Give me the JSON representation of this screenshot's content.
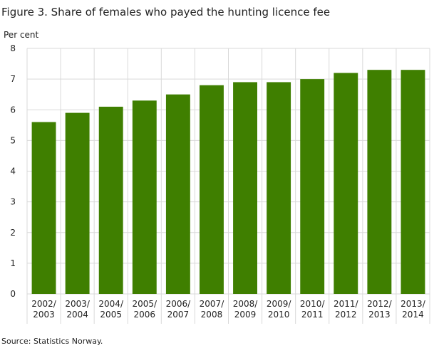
{
  "chart_data": {
    "type": "bar",
    "title": "Figure 3. Share of females who payed the hunting licence fee",
    "y_label": "Per cent",
    "source": "Source: Statistics Norway.",
    "categories": [
      "2002/2003",
      "2003/2004",
      "2004/2005",
      "2005/2006",
      "2006/2007",
      "2007/2008",
      "2008/2009",
      "2009/2010",
      "2010/2011",
      "2011/2012",
      "2012/2013",
      "2013/2014"
    ],
    "values": [
      5.6,
      5.9,
      6.1,
      6.3,
      6.5,
      6.8,
      6.9,
      6.9,
      7.0,
      7.2,
      7.3,
      7.3
    ],
    "color": "#3f7f00",
    "ylim": [
      0,
      8
    ],
    "yticks": [
      0,
      1,
      2,
      3,
      4,
      5,
      6,
      7,
      8
    ],
    "grid": true
  }
}
